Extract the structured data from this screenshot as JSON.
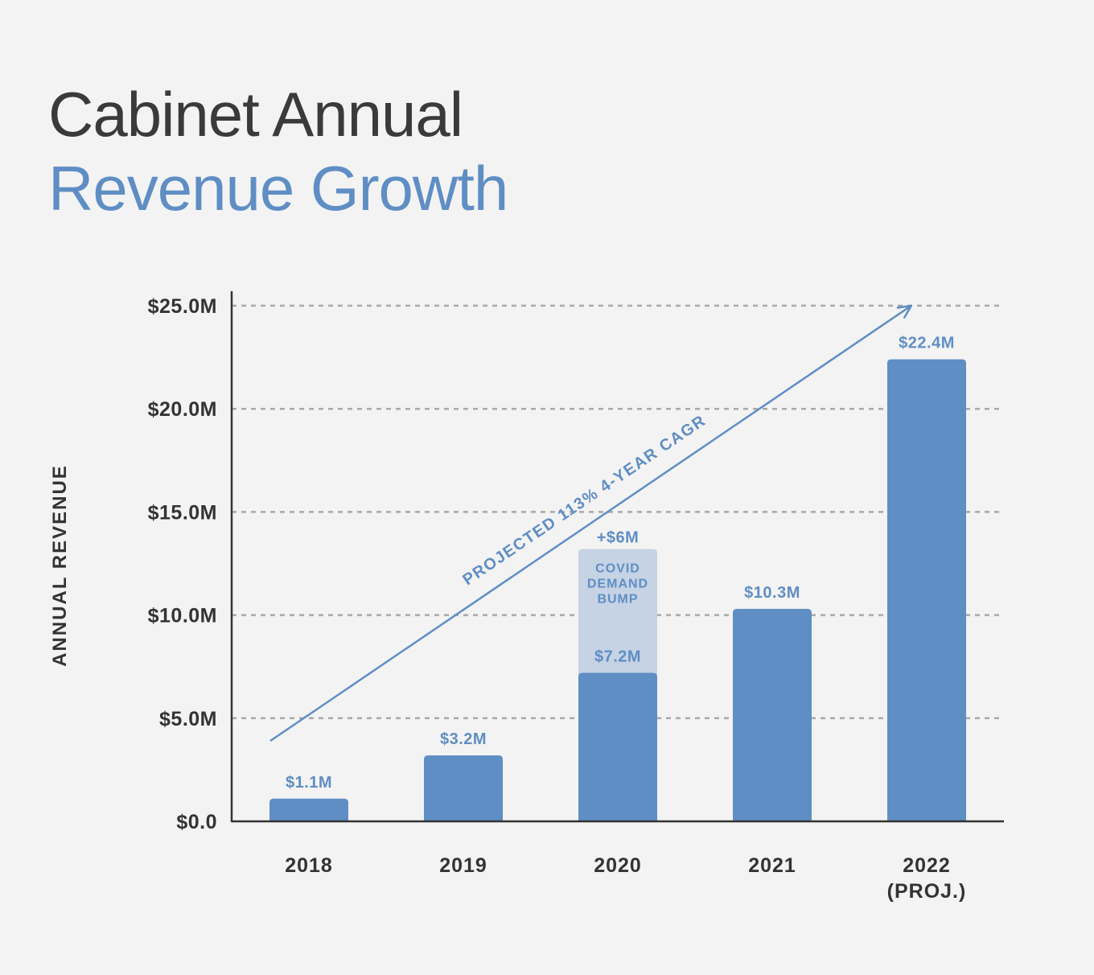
{
  "header": {
    "title_line1": "Cabinet Annual",
    "title_line2": "Revenue Growth"
  },
  "chart_data": {
    "type": "bar",
    "ylabel": "ANNUAL REVENUE",
    "ylim": [
      0,
      25
    ],
    "yticks": [
      {
        "value": 0,
        "label": "$0.0"
      },
      {
        "value": 5,
        "label": "$5.0M"
      },
      {
        "value": 10,
        "label": "$10.0M"
      },
      {
        "value": 15,
        "label": "$15.0M"
      },
      {
        "value": 20,
        "label": "$20.0M"
      },
      {
        "value": 25,
        "label": "$25.0M"
      }
    ],
    "grid": "horizontal-dashed",
    "categories": [
      {
        "lines": [
          "2018"
        ]
      },
      {
        "lines": [
          "2019"
        ]
      },
      {
        "lines": [
          "2020"
        ]
      },
      {
        "lines": [
          "2021"
        ]
      },
      {
        "lines": [
          "2022",
          "(PROJ.)"
        ]
      }
    ],
    "values": [
      1.1,
      3.2,
      7.2,
      10.3,
      22.4
    ],
    "value_labels": [
      "$1.1M",
      "$3.2M",
      "$7.2M",
      "$10.3M",
      "$22.4M"
    ],
    "stacked_extra": {
      "category_index": 2,
      "value": 6,
      "label": "+$6M",
      "text_lines": [
        "COVID",
        "DEMAND",
        "BUMP"
      ]
    },
    "trend": {
      "label": "PROJECTED 113% 4-YEAR CAGR",
      "from": {
        "category_index": 0,
        "value": 3.9
      },
      "to": {
        "category_index": 3.9,
        "value": 25
      }
    },
    "colors": {
      "bar": "#5f8ec4",
      "bump": "#c5d3e4",
      "accent": "#5f8ec4",
      "axis": "#333333",
      "grid": "#a9a9a9"
    }
  }
}
